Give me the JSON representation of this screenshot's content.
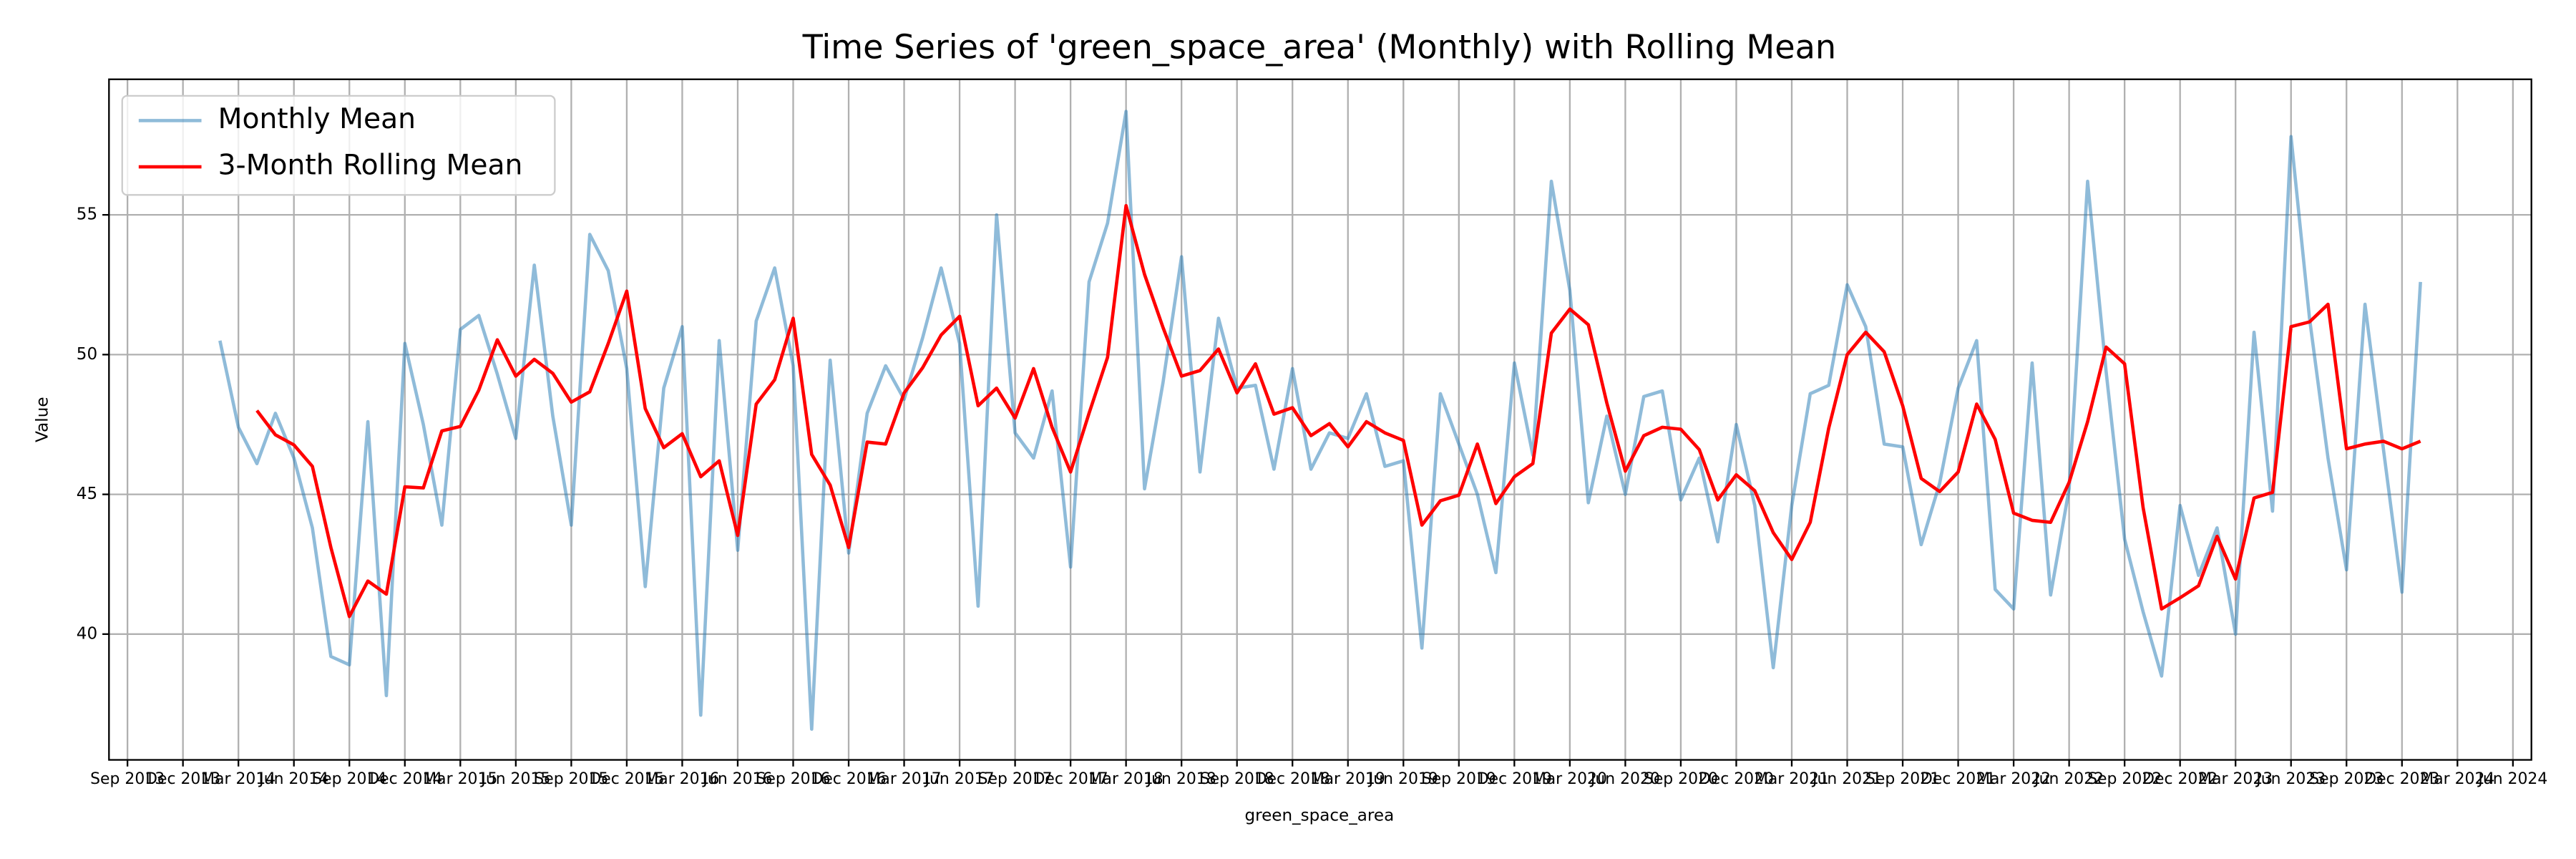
{
  "chart_data": {
    "type": "line",
    "title": "Time Series of 'green_space_area' (Monthly) with Rolling Mean",
    "x_label": "green_space_area",
    "y_label": "Value",
    "x": [
      "2014-02",
      "2014-03",
      "2014-04",
      "2014-05",
      "2014-06",
      "2014-07",
      "2014-08",
      "2014-09",
      "2014-10",
      "2014-11",
      "2014-12",
      "2015-01",
      "2015-02",
      "2015-03",
      "2015-04",
      "2015-05",
      "2015-06",
      "2015-07",
      "2015-08",
      "2015-09",
      "2015-10",
      "2015-11",
      "2015-12",
      "2016-01",
      "2016-02",
      "2016-03",
      "2016-04",
      "2016-05",
      "2016-06",
      "2016-07",
      "2016-08",
      "2016-09",
      "2016-10",
      "2016-11",
      "2016-12",
      "2017-01",
      "2017-02",
      "2017-03",
      "2017-04",
      "2017-05",
      "2017-06",
      "2017-07",
      "2017-08",
      "2017-09",
      "2017-10",
      "2017-11",
      "2017-12",
      "2018-01",
      "2018-02",
      "2018-03",
      "2018-04",
      "2018-05",
      "2018-06",
      "2018-07",
      "2018-08",
      "2018-09",
      "2018-10",
      "2018-11",
      "2018-12",
      "2019-01",
      "2019-02",
      "2019-03",
      "2019-04",
      "2019-05",
      "2019-06",
      "2019-07",
      "2019-08",
      "2019-09",
      "2019-10",
      "2019-11",
      "2019-12",
      "2020-01",
      "2020-02",
      "2020-03",
      "2020-04",
      "2020-05",
      "2020-06",
      "2020-07",
      "2020-08",
      "2020-09",
      "2020-10",
      "2020-11",
      "2020-12",
      "2021-01",
      "2021-02",
      "2021-03",
      "2021-04",
      "2021-05",
      "2021-06",
      "2021-07",
      "2021-08",
      "2021-09",
      "2021-10",
      "2021-11",
      "2021-12",
      "2022-01",
      "2022-02",
      "2022-03",
      "2022-04",
      "2022-05",
      "2022-06",
      "2022-07",
      "2022-08",
      "2022-09",
      "2022-10",
      "2022-11",
      "2022-12",
      "2023-01",
      "2023-02",
      "2023-03",
      "2023-04",
      "2023-05",
      "2023-06",
      "2023-07",
      "2023-08",
      "2023-09",
      "2023-10",
      "2023-11",
      "2023-12",
      "2024-01"
    ],
    "series": [
      {
        "name": "Monthly Mean",
        "color": "#1f77b4",
        "alpha": 0.5,
        "values": [
          50.5,
          47.4,
          46.1,
          47.9,
          46.3,
          43.8,
          39.2,
          38.9,
          47.6,
          37.8,
          50.4,
          47.5,
          43.9,
          50.9,
          51.4,
          49.3,
          47.0,
          53.2,
          47.8,
          43.9,
          54.3,
          53.0,
          49.5,
          41.7,
          48.8,
          51.0,
          37.1,
          50.5,
          43.0,
          51.2,
          53.1,
          49.6,
          36.6,
          49.8,
          42.9,
          47.9,
          49.6,
          48.4,
          50.6,
          53.1,
          50.4,
          41.0,
          55.0,
          47.2,
          46.3,
          48.7,
          42.4,
          52.6,
          54.7,
          58.7,
          45.2,
          49.0,
          53.5,
          45.8,
          51.3,
          48.8,
          48.9,
          45.9,
          49.5,
          45.9,
          47.2,
          47.0,
          48.6,
          46.0,
          46.2,
          39.5,
          48.6,
          46.8,
          45.0,
          42.2,
          49.7,
          46.4,
          56.2,
          52.3,
          44.7,
          47.8,
          45.0,
          48.5,
          48.7,
          44.8,
          46.3,
          43.3,
          47.5,
          44.6,
          38.8,
          44.6,
          48.6,
          48.9,
          52.5,
          51.0,
          46.8,
          46.7,
          43.2,
          45.4,
          48.8,
          50.5,
          41.6,
          40.9,
          49.7,
          41.4,
          45.2,
          56.2,
          49.4,
          43.4,
          40.8,
          38.5,
          44.6,
          42.1,
          43.8,
          40.0,
          50.8,
          44.4,
          57.8,
          51.3,
          46.3,
          42.3,
          51.8,
          46.6,
          41.5,
          52.6
        ]
      },
      {
        "name": "3-Month Rolling Mean",
        "color": "#ff0000",
        "alpha": 1,
        "values": [
          null,
          null,
          48.0,
          47.13,
          46.77,
          46.0,
          43.1,
          40.63,
          41.9,
          41.43,
          45.27,
          45.23,
          47.27,
          47.43,
          48.73,
          50.53,
          49.23,
          49.83,
          49.33,
          48.3,
          48.67,
          50.4,
          52.27,
          48.07,
          46.67,
          47.17,
          45.63,
          46.2,
          43.53,
          48.23,
          49.1,
          51.3,
          46.43,
          45.33,
          43.1,
          46.87,
          46.8,
          48.63,
          49.53,
          50.7,
          51.37,
          48.17,
          48.8,
          47.73,
          49.5,
          47.4,
          45.8,
          47.9,
          49.9,
          55.33,
          52.87,
          50.97,
          49.23,
          49.43,
          50.2,
          48.63,
          49.67,
          47.87,
          48.1,
          47.1,
          47.53,
          46.7,
          47.6,
          47.2,
          46.93,
          43.9,
          44.77,
          44.97,
          46.8,
          44.67,
          45.63,
          46.1,
          50.77,
          51.63,
          51.07,
          48.27,
          45.83,
          47.1,
          47.4,
          47.33,
          46.6,
          44.8,
          45.7,
          45.13,
          43.63,
          42.67,
          44.0,
          47.37,
          50.0,
          50.8,
          50.1,
          48.17,
          45.57,
          45.1,
          45.8,
          48.23,
          46.97,
          44.33,
          44.07,
          44.0,
          45.43,
          47.6,
          50.27,
          49.67,
          44.53,
          40.9,
          41.3,
          41.73,
          43.5,
          41.97,
          44.87,
          45.07,
          51.0,
          51.17,
          51.8,
          46.63,
          46.8,
          46.9,
          46.63,
          46.9
        ]
      }
    ],
    "xlim": [
      "2013-08",
      "2024-07"
    ],
    "xticks": [
      {
        "value": "2013-09",
        "label": "Sep 2013"
      },
      {
        "value": "2013-12",
        "label": "Dec 2013"
      },
      {
        "value": "2014-03",
        "label": "Mar 2014"
      },
      {
        "value": "2014-06",
        "label": "Jun 2014"
      },
      {
        "value": "2014-09",
        "label": "Sep 2014"
      },
      {
        "value": "2014-12",
        "label": "Dec 2014"
      },
      {
        "value": "2015-03",
        "label": "Mar 2015"
      },
      {
        "value": "2015-06",
        "label": "Jun 2015"
      },
      {
        "value": "2015-09",
        "label": "Sep 2015"
      },
      {
        "value": "2015-12",
        "label": "Dec 2015"
      },
      {
        "value": "2016-03",
        "label": "Mar 2016"
      },
      {
        "value": "2016-06",
        "label": "Jun 2016"
      },
      {
        "value": "2016-09",
        "label": "Sep 2016"
      },
      {
        "value": "2016-12",
        "label": "Dec 2016"
      },
      {
        "value": "2017-03",
        "label": "Mar 2017"
      },
      {
        "value": "2017-06",
        "label": "Jun 2017"
      },
      {
        "value": "2017-09",
        "label": "Sep 2017"
      },
      {
        "value": "2017-12",
        "label": "Dec 2017"
      },
      {
        "value": "2018-03",
        "label": "Mar 2018"
      },
      {
        "value": "2018-06",
        "label": "Jun 2018"
      },
      {
        "value": "2018-09",
        "label": "Sep 2018"
      },
      {
        "value": "2018-12",
        "label": "Dec 2018"
      },
      {
        "value": "2019-03",
        "label": "Mar 2019"
      },
      {
        "value": "2019-06",
        "label": "Jun 2019"
      },
      {
        "value": "2019-09",
        "label": "Sep 2019"
      },
      {
        "value": "2019-12",
        "label": "Dec 2019"
      },
      {
        "value": "2020-03",
        "label": "Mar 2020"
      },
      {
        "value": "2020-06",
        "label": "Jun 2020"
      },
      {
        "value": "2020-09",
        "label": "Sep 2020"
      },
      {
        "value": "2020-12",
        "label": "Dec 2020"
      },
      {
        "value": "2021-03",
        "label": "Mar 2021"
      },
      {
        "value": "2021-06",
        "label": "Jun 2021"
      },
      {
        "value": "2021-09",
        "label": "Sep 2021"
      },
      {
        "value": "2021-12",
        "label": "Dec 2021"
      },
      {
        "value": "2022-03",
        "label": "Mar 2022"
      },
      {
        "value": "2022-06",
        "label": "Jun 2022"
      },
      {
        "value": "2022-09",
        "label": "Sep 2022"
      },
      {
        "value": "2022-12",
        "label": "Dec 2022"
      },
      {
        "value": "2023-03",
        "label": "Mar 2023"
      },
      {
        "value": "2023-06",
        "label": "Jun 2023"
      },
      {
        "value": "2023-09",
        "label": "Sep 2023"
      },
      {
        "value": "2023-12",
        "label": "Dec 2023"
      },
      {
        "value": "2024-03",
        "label": "Mar 2024"
      },
      {
        "value": "2024-06",
        "label": "Jun 2024"
      }
    ],
    "ylim": [
      35.5,
      59.85
    ],
    "yticks": [
      40,
      45,
      50,
      55
    ],
    "grid": true,
    "legend": "upper left"
  }
}
